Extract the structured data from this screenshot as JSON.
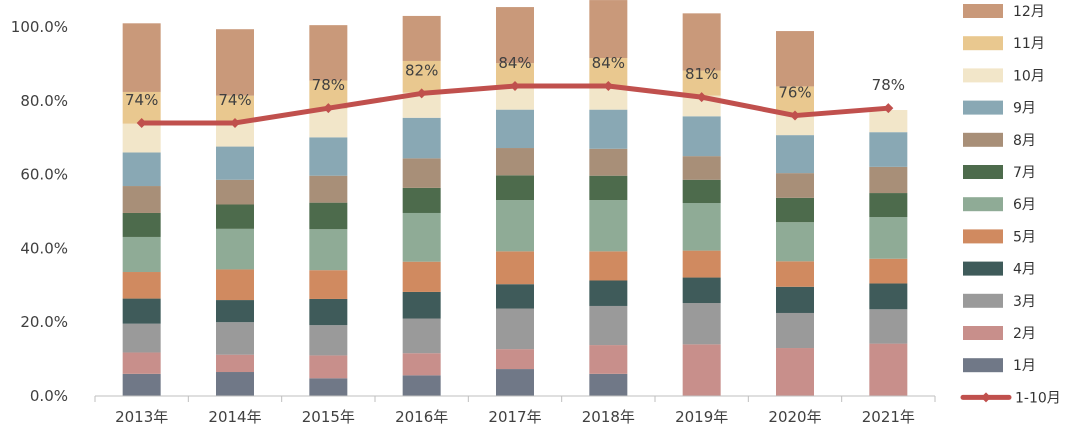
{
  "chart_data": {
    "type": "bar",
    "stacked": true,
    "categories": [
      "2013年",
      "2014年",
      "2015年",
      "2016年",
      "2017年",
      "2018年",
      "2019年",
      "2020年",
      "2021年"
    ],
    "ylim": [
      0,
      100
    ],
    "yticks": [
      "0.0%",
      "20.0%",
      "40.0%",
      "60.0%",
      "80.0%",
      "100.0%"
    ],
    "ytick_values": [
      0,
      20,
      40,
      60,
      80,
      100
    ],
    "series": [
      {
        "name": "1月",
        "color": "#707887",
        "values": [
          6.0,
          6.5,
          4.8,
          5.6,
          7.3,
          6.0,
          0,
          0,
          0
        ]
      },
      {
        "name": "2月",
        "color": "#c88f8b",
        "values": [
          5.8,
          4.7,
          6.2,
          6.0,
          5.4,
          7.8,
          14.0,
          13.0,
          14.2
        ]
      },
      {
        "name": "3月",
        "color": "#9a9a9a",
        "values": [
          7.8,
          8.8,
          8.2,
          9.4,
          11.0,
          10.6,
          11.2,
          9.5,
          9.3
        ]
      },
      {
        "name": "4月",
        "color": "#3f5b5a",
        "values": [
          6.8,
          6.0,
          7.1,
          7.2,
          6.6,
          6.9,
          6.9,
          7.1,
          7.0
        ]
      },
      {
        "name": "5月",
        "color": "#d08a60",
        "values": [
          7.2,
          8.3,
          7.8,
          8.2,
          8.9,
          7.9,
          7.3,
          6.9,
          6.7
        ]
      },
      {
        "name": "6月",
        "color": "#8fab96",
        "values": [
          9.5,
          11.0,
          11.1,
          13.2,
          13.9,
          13.9,
          12.9,
          10.6,
          11.3
        ]
      },
      {
        "name": "7月",
        "color": "#4d6b4c",
        "values": [
          6.5,
          6.6,
          7.2,
          6.8,
          6.7,
          6.6,
          6.3,
          6.6,
          6.5
        ]
      },
      {
        "name": "8月",
        "color": "#a88f78",
        "values": [
          7.3,
          6.7,
          7.3,
          8.0,
          7.4,
          7.3,
          6.4,
          6.7,
          7.1
        ]
      },
      {
        "name": "9月",
        "color": "#89a8b4",
        "values": [
          9.1,
          9.0,
          10.4,
          11.0,
          10.4,
          10.6,
          10.8,
          10.3,
          9.4
        ]
      },
      {
        "name": "10月",
        "color": "#f2e6c9",
        "values": [
          7.8,
          6.6,
          7.8,
          6.8,
          6.3,
          6.5,
          5.6,
          5.6,
          6.0
        ]
      },
      {
        "name": "11月",
        "color": "#e9c88f",
        "values": [
          8.6,
          7.2,
          7.6,
          8.6,
          6.3,
          7.5,
          6.8,
          7.6,
          0
        ]
      },
      {
        "name": "12月",
        "color": "#c9997a",
        "values": [
          18.6,
          18.0,
          15.0,
          12.2,
          15.2,
          15.7,
          15.5,
          15.0,
          0
        ]
      }
    ],
    "line": {
      "name": "1-10月",
      "color": "#c0504d",
      "values": [
        74,
        74,
        78,
        82,
        84,
        84,
        81,
        76,
        78
      ],
      "labels": [
        "74%",
        "74%",
        "78%",
        "82%",
        "84%",
        "84%",
        "81%",
        "76%",
        "78%"
      ]
    },
    "legend_order": [
      "12月",
      "11月",
      "10月",
      "9月",
      "8月",
      "7月",
      "6月",
      "5月",
      "4月",
      "3月",
      "2月",
      "1月",
      "1-10月"
    ],
    "legend_position": "right"
  }
}
